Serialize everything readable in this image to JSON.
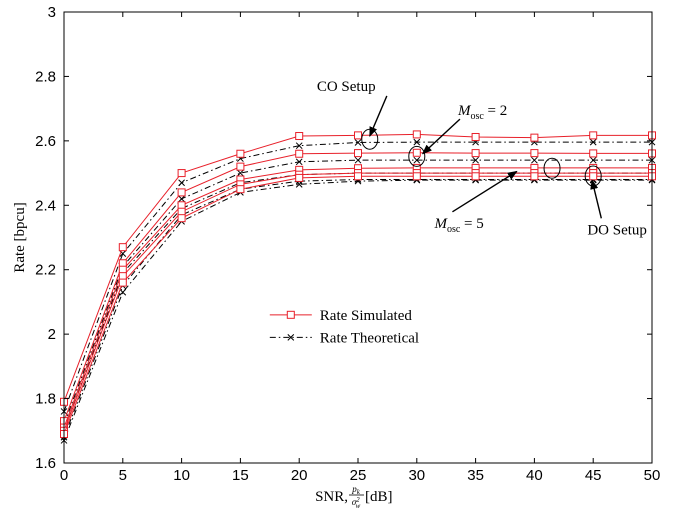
{
  "chart_data": {
    "type": "line",
    "xlabel": "SNR, p_k / σ_w^2 [dB]",
    "xlabel_parts": {
      "prefix": "SNR, ",
      "num": "p",
      "num_sub": "k",
      "den": "σ",
      "den_sub": "w",
      "den_sup": "2",
      "suffix": " [dB]"
    },
    "ylabel": "Rate [bpcu]",
    "xlim": [
      0,
      50
    ],
    "ylim": [
      1.6,
      3
    ],
    "x": [
      0,
      5,
      10,
      15,
      20,
      25,
      30,
      35,
      40,
      45,
      50
    ],
    "x_ticks": [
      "0",
      "5",
      "10",
      "15",
      "20",
      "25",
      "30",
      "35",
      "40",
      "45",
      "50"
    ],
    "y_ticks": [
      "1.6",
      "1.8",
      "2",
      "2.2",
      "2.4",
      "2.6",
      "2.8",
      "3"
    ],
    "grid": false,
    "legend_position": "center",
    "legend": [
      {
        "label": "Rate Simulated",
        "color": "#e8202a",
        "marker": "square",
        "dash": "solid"
      },
      {
        "label": "Rate Theoretical",
        "color": "#000000",
        "marker": "x",
        "dash": "dashdot"
      }
    ],
    "series": [
      {
        "kind": "simulated",
        "values": [
          1.79,
          2.27,
          2.5,
          2.56,
          2.615,
          2.617,
          2.62,
          2.612,
          2.61,
          2.617,
          2.617
        ]
      },
      {
        "kind": "simulated",
        "values": [
          1.73,
          2.22,
          2.44,
          2.52,
          2.56,
          2.562,
          2.563,
          2.562,
          2.562,
          2.561,
          2.561
        ]
      },
      {
        "kind": "simulated",
        "values": [
          1.71,
          2.2,
          2.4,
          2.48,
          2.51,
          2.515,
          2.516,
          2.516,
          2.516,
          2.516,
          2.516
        ]
      },
      {
        "kind": "simulated",
        "values": [
          1.7,
          2.18,
          2.38,
          2.465,
          2.495,
          2.5,
          2.5,
          2.5,
          2.5,
          2.5,
          2.5
        ]
      },
      {
        "kind": "simulated",
        "values": [
          1.69,
          2.16,
          2.36,
          2.45,
          2.485,
          2.49,
          2.49,
          2.49,
          2.49,
          2.49,
          2.49
        ]
      },
      {
        "kind": "theoretical",
        "values": [
          1.76,
          2.25,
          2.47,
          2.545,
          2.585,
          2.595,
          2.596,
          2.596,
          2.596,
          2.596,
          2.596
        ]
      },
      {
        "kind": "theoretical",
        "values": [
          1.72,
          2.21,
          2.42,
          2.5,
          2.535,
          2.54,
          2.54,
          2.54,
          2.54,
          2.54,
          2.54
        ]
      },
      {
        "kind": "theoretical",
        "values": [
          1.7,
          2.19,
          2.39,
          2.47,
          2.495,
          2.5,
          2.5,
          2.5,
          2.5,
          2.5,
          2.5
        ]
      },
      {
        "kind": "theoretical",
        "values": [
          1.68,
          2.15,
          2.37,
          2.45,
          2.475,
          2.48,
          2.48,
          2.48,
          2.48,
          2.48,
          2.48
        ]
      },
      {
        "kind": "theoretical",
        "values": [
          1.67,
          2.13,
          2.35,
          2.44,
          2.465,
          2.475,
          2.478,
          2.478,
          2.478,
          2.478,
          2.478
        ]
      }
    ],
    "annotations": [
      {
        "id": "co",
        "text": "CO Setup",
        "ellipse_at": [
          26,
          2.605
        ],
        "label_at": [
          21.5,
          2.755
        ],
        "arrow_to": [
          26,
          2.615
        ]
      },
      {
        "id": "mosc2",
        "math_var": "M",
        "math_sub": "osc",
        "math_rel": " = 2",
        "ellipse_at": [
          30,
          2.552
        ],
        "label_at": [
          33.5,
          2.68
        ],
        "arrow_to": [
          30.5,
          2.56
        ]
      },
      {
        "id": "mosc5",
        "math_var": "M",
        "math_sub": "osc",
        "math_rel": " = 5",
        "ellipse_at": [
          41.5,
          2.515
        ],
        "label_at": [
          31.5,
          2.33
        ],
        "arrow_to": [
          38.5,
          2.505
        ]
      },
      {
        "id": "do",
        "text": "DO Setup",
        "ellipse_at": [
          45,
          2.491
        ],
        "label_at": [
          44.5,
          2.31
        ],
        "arrow_to": [
          44.9,
          2.478
        ]
      }
    ]
  }
}
